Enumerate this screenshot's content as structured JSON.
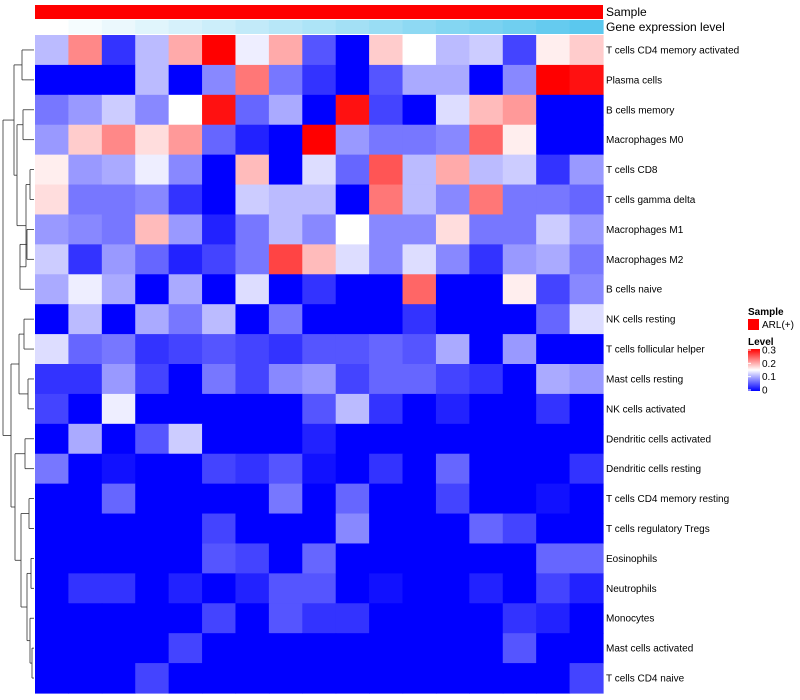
{
  "chart_data": {
    "type": "heatmap",
    "annotations": [
      {
        "name": "Sample"
      },
      {
        "name": "Gene expression level"
      }
    ],
    "rows": [
      "T cells CD4 memory activated",
      "Plasma cells",
      "B cells memory",
      "Macrophages M0",
      "T cells CD8",
      "T cells gamma delta",
      "Macrophages M1",
      "Macrophages M2",
      "B cells naive",
      "NK cells resting",
      "T cells follicular helper",
      "Mast cells resting",
      "NK cells activated",
      "Dendritic cells activated",
      "Dendritic cells resting",
      "T cells CD4 memory resting",
      "T cells regulatory  Tregs",
      "Eosinophils",
      "Neutrophils",
      "Monocytes",
      "Mast cells activated",
      "T cells CD4 naive"
    ],
    "values": [
      [
        0.11,
        0.22,
        0.03,
        0.11,
        0.2,
        0.3,
        0.14,
        0.2,
        0.05,
        0.0,
        0.18,
        0.15,
        0.11,
        0.12,
        0.04,
        0.16,
        0.18
      ],
      [
        0.0,
        0.0,
        0.0,
        0.11,
        0.0,
        0.08,
        0.23,
        0.07,
        0.03,
        0.0,
        0.05,
        0.1,
        0.1,
        0.0,
        0.08,
        0.3,
        0.29
      ],
      [
        0.07,
        0.09,
        0.12,
        0.08,
        0.15,
        0.29,
        0.06,
        0.1,
        0.0,
        0.29,
        0.04,
        0.0,
        0.13,
        0.19,
        0.21,
        0.0,
        0.0
      ],
      [
        0.09,
        0.18,
        0.22,
        0.17,
        0.21,
        0.06,
        0.02,
        0.0,
        0.3,
        0.09,
        0.07,
        0.07,
        0.08,
        0.24,
        0.16,
        0.0,
        0.0
      ],
      [
        0.16,
        0.09,
        0.1,
        0.14,
        0.08,
        0.0,
        0.19,
        0.0,
        0.13,
        0.06,
        0.25,
        0.11,
        0.2,
        0.11,
        0.12,
        0.03,
        0.09
      ],
      [
        0.17,
        0.07,
        0.07,
        0.08,
        0.03,
        0.0,
        0.12,
        0.11,
        0.11,
        0.0,
        0.23,
        0.11,
        0.08,
        0.23,
        0.07,
        0.07,
        0.06
      ],
      [
        0.09,
        0.08,
        0.07,
        0.19,
        0.09,
        0.02,
        0.07,
        0.11,
        0.08,
        0.15,
        0.08,
        0.08,
        0.17,
        0.07,
        0.07,
        0.12,
        0.09
      ],
      [
        0.12,
        0.03,
        0.09,
        0.06,
        0.02,
        0.04,
        0.07,
        0.26,
        0.19,
        0.13,
        0.08,
        0.13,
        0.08,
        0.03,
        0.09,
        0.1,
        0.07
      ],
      [
        0.1,
        0.14,
        0.1,
        0.0,
        0.1,
        0.0,
        0.13,
        0.0,
        0.03,
        0.0,
        0.0,
        0.24,
        0.0,
        0.0,
        0.16,
        0.04,
        0.08
      ],
      [
        0.0,
        0.11,
        0.0,
        0.1,
        0.07,
        0.11,
        0.0,
        0.07,
        0.0,
        0.0,
        0.0,
        0.03,
        0.0,
        0.0,
        0.0,
        0.06,
        0.13
      ],
      [
        0.13,
        0.06,
        0.07,
        0.03,
        0.04,
        0.05,
        0.04,
        0.03,
        0.05,
        0.05,
        0.06,
        0.05,
        0.1,
        0.0,
        0.09,
        0.0,
        0.0
      ],
      [
        0.03,
        0.03,
        0.09,
        0.04,
        0.0,
        0.07,
        0.04,
        0.08,
        0.09,
        0.04,
        0.06,
        0.06,
        0.04,
        0.03,
        0.0,
        0.1,
        0.09
      ],
      [
        0.04,
        0.0,
        0.14,
        0.0,
        0.0,
        0.0,
        0.0,
        0.0,
        0.05,
        0.11,
        0.03,
        0.0,
        0.02,
        0.0,
        0.0,
        0.03,
        0.0
      ],
      [
        0.0,
        0.1,
        0.0,
        0.05,
        0.12,
        0.0,
        0.0,
        0.0,
        0.02,
        0.0,
        0.0,
        0.0,
        0.0,
        0.0,
        0.0,
        0.0,
        0.0
      ],
      [
        0.07,
        0.0,
        0.01,
        0.0,
        0.0,
        0.04,
        0.03,
        0.05,
        0.01,
        0.0,
        0.03,
        0.0,
        0.06,
        0.0,
        0.0,
        0.0,
        0.03
      ],
      [
        0.0,
        0.0,
        0.06,
        0.0,
        0.0,
        0.0,
        0.0,
        0.07,
        0.0,
        0.06,
        0.0,
        0.0,
        0.04,
        0.0,
        0.0,
        0.01,
        0.0
      ],
      [
        0.0,
        0.0,
        0.0,
        0.0,
        0.0,
        0.04,
        0.0,
        0.0,
        0.0,
        0.08,
        0.0,
        0.0,
        0.0,
        0.06,
        0.04,
        0.0,
        0.0
      ],
      [
        0.0,
        0.0,
        0.0,
        0.0,
        0.0,
        0.05,
        0.04,
        0.0,
        0.06,
        0.0,
        0.0,
        0.0,
        0.0,
        0.0,
        0.0,
        0.06,
        0.06
      ],
      [
        0.0,
        0.03,
        0.03,
        0.0,
        0.02,
        0.0,
        0.02,
        0.05,
        0.05,
        0.0,
        0.01,
        0.0,
        0.0,
        0.02,
        0.0,
        0.04,
        0.02
      ],
      [
        0.0,
        0.0,
        0.0,
        0.0,
        0.0,
        0.04,
        0.0,
        0.05,
        0.03,
        0.03,
        0.0,
        0.0,
        0.0,
        0.0,
        0.03,
        0.02,
        0.0
      ],
      [
        0.0,
        0.0,
        0.0,
        0.0,
        0.04,
        0.0,
        0.0,
        0.0,
        0.0,
        0.0,
        0.0,
        0.0,
        0.0,
        0.0,
        0.05,
        0.0,
        0.0
      ],
      [
        0.0,
        0.0,
        0.0,
        0.04,
        0.0,
        0.0,
        0.0,
        0.0,
        0.0,
        0.0,
        0.0,
        0.0,
        0.0,
        0.0,
        0.0,
        0.0,
        0.04
      ]
    ],
    "color_scale": {
      "low": "#0000ff",
      "mid": "#ffffff",
      "high": "#ff0000",
      "min": 0,
      "mid_value": 0.15,
      "max": 0.3
    },
    "legend": {
      "sample_title": "Sample",
      "sample_item": "ARL(+)",
      "sample_color": "#ff0000",
      "level_title": "Level",
      "ticks": [
        "0.3",
        "0.2",
        "0.1",
        "0"
      ],
      "placement": "right"
    },
    "gene_gradient": {
      "start": "#ffffff",
      "end": "#5bc8ee"
    },
    "dendrogram": "row clustering tree on the left"
  }
}
